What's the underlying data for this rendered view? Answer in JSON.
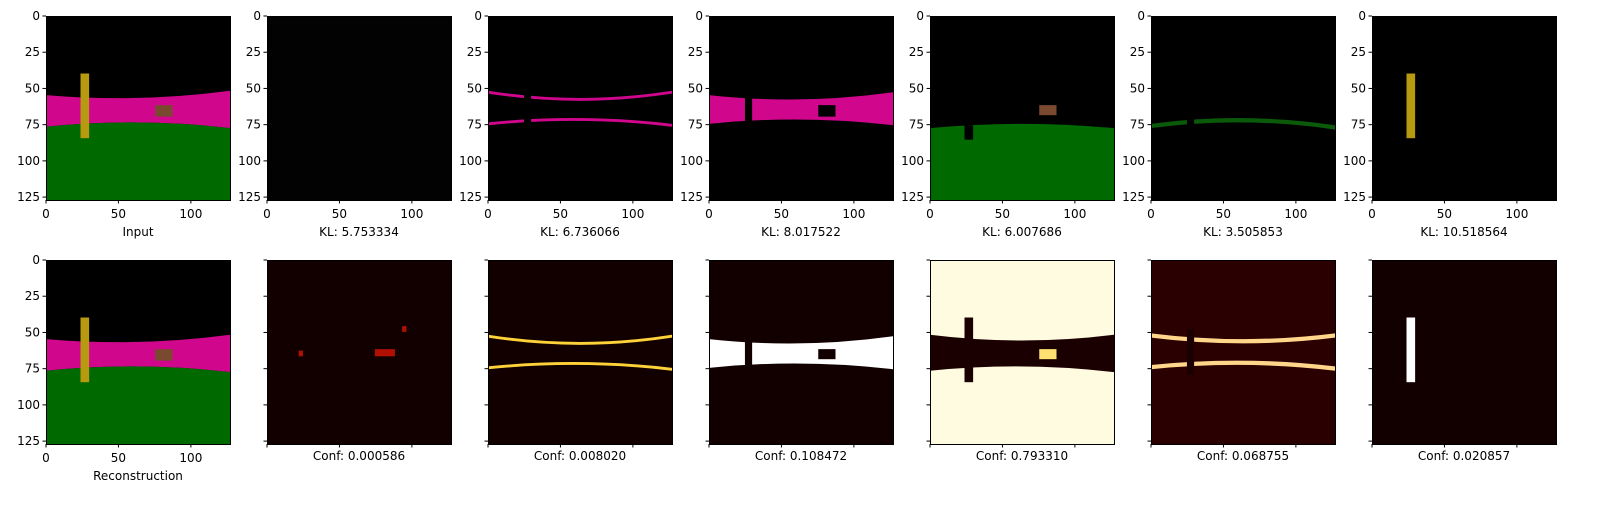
{
  "chart_data": {
    "type": "image-grid",
    "rows": 2,
    "cols": 7,
    "axis_range": [
      0,
      127
    ],
    "ticks": [
      0,
      25,
      50,
      75,
      100,
      125
    ],
    "xticks": [
      0,
      50,
      100
    ],
    "colors": {
      "background": "#000000",
      "sky_band": "#d0068c",
      "ground": "#006a00",
      "object_yellow": "#b89a10",
      "object_brown": "#7a4a30",
      "heat_low": "#120000",
      "heat_mid": "#b01000",
      "heat_high": "#ffffff"
    },
    "top_row": [
      {
        "caption": "Input",
        "content": "full-scene"
      },
      {
        "caption": "KL: 5.753334",
        "content": "empty"
      },
      {
        "caption": "KL: 6.736066",
        "content": "band-edges"
      },
      {
        "caption": "KL: 8.017522",
        "content": "pink-band"
      },
      {
        "caption": "KL: 6.007686",
        "content": "ground"
      },
      {
        "caption": "KL: 3.505853",
        "content": "ground-edge"
      },
      {
        "caption": "KL: 10.518564",
        "content": "pillar"
      }
    ],
    "bottom_row": [
      {
        "caption": "Reconstruction",
        "content": "full-scene"
      },
      {
        "caption": "Conf: 0.000586",
        "content": "heat-sparse"
      },
      {
        "caption": "Conf: 0.008020",
        "content": "heat-band-edges"
      },
      {
        "caption": "Conf: 0.108472",
        "content": "heat-band"
      },
      {
        "caption": "Conf: 0.793310",
        "content": "heat-inverse"
      },
      {
        "caption": "Conf: 0.068755",
        "content": "heat-edges-bright"
      },
      {
        "caption": "Conf: 0.020857",
        "content": "heat-pillar"
      }
    ]
  }
}
